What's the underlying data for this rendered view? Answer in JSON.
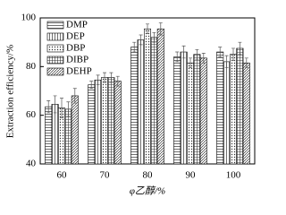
{
  "chart_data": {
    "type": "bar",
    "x_label": "φ乙醇/%",
    "y_label": "Extraction efficiency/%",
    "categories": [
      "60",
      "70",
      "80",
      "90",
      "100"
    ],
    "ylim": [
      40,
      100
    ],
    "yticks": [
      40,
      60,
      80,
      100
    ],
    "legend": "upper left",
    "series": [
      {
        "name": "DMP",
        "color": "#ffffff",
        "hatch": "horizontal",
        "values": [
          63.5,
          72.5,
          88,
          84,
          86
        ],
        "errors": [
          2.5,
          1.5,
          2,
          2,
          2
        ]
      },
      {
        "name": "DEP",
        "color": "#ffffff",
        "hatch": "vertical",
        "values": [
          64.5,
          74.5,
          91,
          86,
          82
        ],
        "errors": [
          3.5,
          2,
          2,
          2.5,
          2.5
        ]
      },
      {
        "name": "DBP",
        "color": "#ffffff",
        "hatch": "dots",
        "values": [
          63,
          75.5,
          95.5,
          81.5,
          85
        ],
        "errors": [
          4,
          2,
          2,
          2,
          2.5
        ]
      },
      {
        "name": "DIBP",
        "color": "#ffffff",
        "hatch": "cross",
        "values": [
          62.5,
          75.5,
          92,
          85,
          87.5
        ],
        "errors": [
          3,
          2,
          2,
          2,
          2.5
        ]
      },
      {
        "name": "DEHP",
        "color": "#ffffff",
        "hatch": "diagonal",
        "values": [
          68,
          74,
          95.5,
          83.5,
          81.5
        ],
        "errors": [
          3,
          2,
          2.5,
          2,
          2
        ]
      }
    ]
  }
}
